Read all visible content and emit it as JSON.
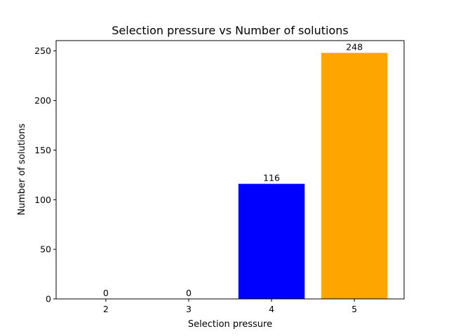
{
  "chart_data": {
    "type": "bar",
    "title": "Selection pressure vs Number of solutions",
    "xlabel": "Selection pressure",
    "ylabel": "Number of solutions",
    "categories": [
      "2",
      "3",
      "4",
      "5"
    ],
    "values": [
      0,
      0,
      116,
      248
    ],
    "data_labels": [
      "0",
      "0",
      "116",
      "248"
    ],
    "bar_colors": [
      "#0000ff",
      "#0000ff",
      "#0000ff",
      "#ffa500"
    ],
    "ylim": [
      0,
      260.4
    ],
    "yticks": [
      0,
      50,
      100,
      150,
      200,
      250
    ],
    "ytick_labels": [
      "0",
      "50",
      "100",
      "150",
      "200",
      "250"
    ],
    "grid": false,
    "legend": "none"
  }
}
